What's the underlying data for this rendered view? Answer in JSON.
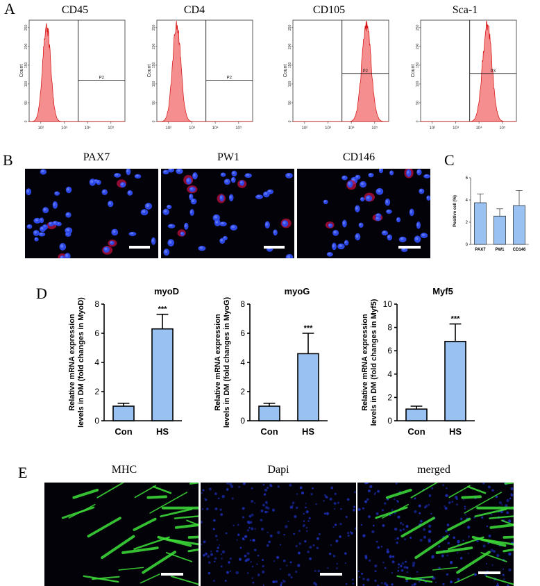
{
  "panels": {
    "A": {
      "letter": "A",
      "plots": [
        {
          "title": "CD45",
          "gate": "P2",
          "peak": 2.25,
          "sigma": 0.17,
          "positive": false
        },
        {
          "title": "CD4",
          "gate": "P2",
          "peak": 2.35,
          "sigma": 0.18,
          "positive": false
        },
        {
          "title": "CD105",
          "gate": "P2",
          "peak": 4.65,
          "sigma": 0.2,
          "positive": true
        },
        {
          "title": "Sca-1",
          "gate": "P3",
          "peak": 4.35,
          "sigma": 0.2,
          "positive": true
        }
      ],
      "ylabel": "Count",
      "gate_x": 3.6,
      "yticks": [
        0,
        50,
        100,
        150,
        200,
        250
      ],
      "xticks": [
        "10²",
        "10³",
        "10⁴",
        "10⁵"
      ],
      "xtick_vals": [
        2,
        3,
        4,
        5
      ]
    },
    "B": {
      "letter": "B",
      "images": [
        {
          "title": "PAX7"
        },
        {
          "title": "PW1"
        },
        {
          "title": "CD146"
        }
      ]
    },
    "C": {
      "letter": "C",
      "ylabel": "Positive cell (%)"
    },
    "D": {
      "letter": "D",
      "ylabel_line1": "Relative mRNA expression",
      "ylabels_line2": [
        "levels in DM (fold changes in MyoD)",
        "levels in DM (fold changes in MyoG)",
        "levels in DM (fold changes in Myf5)"
      ]
    },
    "E": {
      "letter": "E",
      "images": [
        {
          "title": "MHC"
        },
        {
          "title": "Dapi"
        },
        {
          "title": "merged"
        }
      ]
    }
  },
  "chart_data": [
    {
      "type": "bar",
      "id": "C",
      "categories": [
        "PAX7",
        "PW1",
        "CD146"
      ],
      "values": [
        3.75,
        2.55,
        3.5
      ],
      "errors": [
        0.8,
        0.65,
        1.35
      ],
      "ylabel": "Positive cell (%)",
      "ylim": [
        0,
        6
      ],
      "yticks": [
        0,
        2,
        4,
        6
      ],
      "bar_color": "#99c2f3"
    },
    {
      "type": "bar",
      "id": "myoD",
      "title": "myoD",
      "categories": [
        "Con",
        "HS"
      ],
      "values": [
        1.0,
        6.3
      ],
      "errors": [
        0.2,
        1.0
      ],
      "significance": [
        "",
        "***"
      ],
      "ylim": [
        0,
        8
      ],
      "yticks": [
        0,
        2,
        4,
        6,
        8
      ],
      "bar_color": "#99c2f3"
    },
    {
      "type": "bar",
      "id": "myoG",
      "title": "myoG",
      "categories": [
        "Con",
        "HS"
      ],
      "values": [
        1.0,
        4.6
      ],
      "errors": [
        0.2,
        1.4
      ],
      "significance": [
        "",
        "***"
      ],
      "ylim": [
        0,
        8
      ],
      "yticks": [
        0,
        2,
        4,
        6,
        8
      ],
      "bar_color": "#99c2f3"
    },
    {
      "type": "bar",
      "id": "Myf5",
      "title": "Myf5",
      "categories": [
        "Con",
        "HS"
      ],
      "values": [
        1.0,
        6.8
      ],
      "errors": [
        0.25,
        1.5
      ],
      "significance": [
        "",
        "***"
      ],
      "ylim": [
        0,
        10
      ],
      "yticks": [
        0,
        2,
        4,
        6,
        8,
        10
      ],
      "bar_color": "#99c2f3"
    }
  ]
}
